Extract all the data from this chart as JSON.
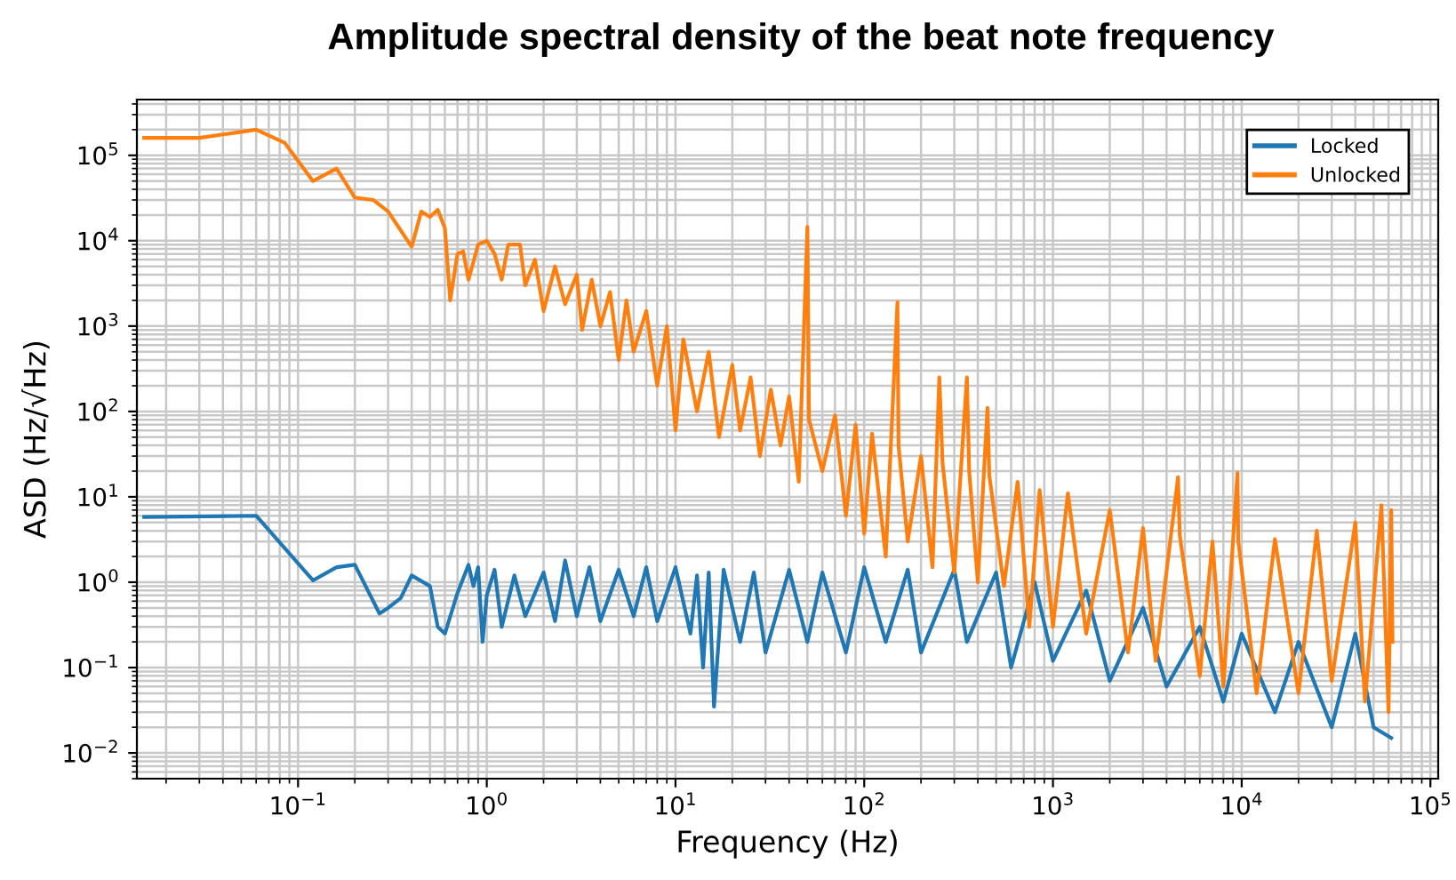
{
  "chart_data": {
    "type": "line",
    "title": "Amplitude spectral density of the beat note frequency",
    "xlabel": "Frequency (Hz)",
    "ylabel": "ASD (Hz/√Hz)",
    "log": "xy",
    "grid": true,
    "legend": "top right",
    "xlim": [
      0.014,
      110000
    ],
    "ylim": [
      0.005,
      450000
    ],
    "xticks": [
      {
        "value": 0.1,
        "label": "10$^{−1}$"
      },
      {
        "value": 1,
        "label": "10$^{0}$"
      },
      {
        "value": 10,
        "label": "10$^{1}$"
      },
      {
        "value": 100,
        "label": "10$^{2}$"
      },
      {
        "value": 1000,
        "label": "10$^{3}$"
      },
      {
        "value": 10000,
        "label": "10$^{4}$"
      },
      {
        "value": 100000,
        "label": "10$^{5}$"
      }
    ],
    "yticks": [
      {
        "value": 0.01,
        "label": "10$^{−2}$"
      },
      {
        "value": 0.1,
        "label": "10$^{−1}$"
      },
      {
        "value": 1,
        "label": "10$^{0}$"
      },
      {
        "value": 10,
        "label": "10$^{1}$"
      },
      {
        "value": 100,
        "label": "10$^{2}$"
      },
      {
        "value": 1000,
        "label": "10$^{3}$"
      },
      {
        "value": 10000,
        "label": "10$^{4}$"
      },
      {
        "value": 100000,
        "label": "10$^{5}$"
      }
    ],
    "series": [
      {
        "name": "Locked",
        "color": "#1f77b4",
        "x": [
          0.0153,
          0.06,
          0.12,
          0.16,
          0.2,
          0.27,
          0.3,
          0.35,
          0.4,
          0.5,
          0.55,
          0.6,
          0.7,
          0.8,
          0.85,
          0.9,
          0.95,
          1.0,
          1.1,
          1.2,
          1.4,
          1.6,
          2.0,
          2.3,
          2.6,
          3.0,
          3.5,
          4.0,
          5,
          6,
          7,
          8,
          10,
          12,
          13,
          14,
          15,
          16,
          18,
          22,
          26,
          30,
          40,
          50,
          60,
          80,
          100,
          130,
          170,
          200,
          300,
          350,
          500,
          600,
          800,
          1000,
          1500,
          2000,
          3000,
          4000,
          6000,
          8000,
          10000,
          15000,
          20000,
          30000,
          40000,
          50000,
          62000
        ],
        "values": [
          5.8,
          6,
          1.05,
          1.5,
          1.6,
          0.43,
          0.5,
          0.65,
          1.2,
          0.9,
          0.3,
          0.25,
          0.75,
          1.6,
          0.9,
          1.5,
          0.2,
          0.7,
          1.4,
          0.3,
          1.2,
          0.4,
          1.3,
          0.35,
          1.8,
          0.4,
          1.5,
          0.35,
          1.4,
          0.4,
          1.5,
          0.35,
          1.5,
          0.25,
          1.2,
          0.1,
          1.3,
          0.035,
          1.4,
          0.2,
          1.3,
          0.15,
          1.4,
          0.2,
          1.3,
          0.15,
          1.5,
          0.2,
          1.4,
          0.15,
          1.4,
          0.2,
          1.3,
          0.1,
          1.0,
          0.12,
          0.8,
          0.07,
          0.5,
          0.06,
          0.3,
          0.04,
          0.25,
          0.03,
          0.2,
          0.02,
          0.25,
          0.02,
          0.015
        ]
      },
      {
        "name": "Unlocked",
        "color": "#ff7f0e",
        "x": [
          0.0153,
          0.03,
          0.06,
          0.085,
          0.12,
          0.16,
          0.2,
          0.25,
          0.3,
          0.4,
          0.45,
          0.5,
          0.55,
          0.6,
          0.64,
          0.7,
          0.75,
          0.8,
          0.9,
          1.0,
          1.1,
          1.2,
          1.3,
          1.5,
          1.6,
          1.8,
          2.0,
          2.3,
          2.6,
          3.0,
          3.2,
          3.6,
          4.0,
          4.5,
          5.0,
          5.5,
          6.0,
          7.0,
          8.0,
          9.0,
          10,
          11,
          13,
          15,
          17,
          20,
          22,
          25,
          28,
          32,
          36,
          40,
          45,
          50,
          51,
          60,
          70,
          80,
          90,
          100,
          110,
          130,
          150,
          152,
          170,
          200,
          230,
          250,
          260,
          300,
          350,
          360,
          400,
          450,
          460,
          550,
          650,
          750,
          850,
          1000,
          1200,
          1500,
          2000,
          2500,
          3000,
          3500,
          4600,
          4700,
          6000,
          7000,
          8000,
          9500,
          9600,
          12000,
          15000,
          20000,
          25000,
          30000,
          40000,
          45000,
          55000,
          60000,
          62000,
          63000
        ],
        "values": [
          160000,
          160000,
          200000,
          140000,
          50000,
          70000,
          32000,
          30000,
          22000,
          8500,
          22000,
          19000,
          23000,
          14000,
          2000,
          7000,
          7500,
          3500,
          9000,
          10000,
          7000,
          3500,
          9000,
          9000,
          3000,
          6000,
          1500,
          5000,
          1800,
          4000,
          900,
          3500,
          1000,
          2500,
          400,
          2000,
          500,
          1500,
          200,
          1000,
          60,
          700,
          100,
          500,
          50,
          350,
          60,
          250,
          30,
          180,
          40,
          150,
          15,
          14500,
          80,
          20,
          90,
          6,
          70,
          3.7,
          55,
          2,
          1900,
          40,
          3,
          30,
          1.5,
          250,
          25,
          1.3,
          250,
          20,
          1,
          110,
          18,
          0.9,
          15,
          0.3,
          12,
          0.3,
          11,
          0.25,
          7,
          0.15,
          4.3,
          0.12,
          17,
          3.5,
          0.08,
          3,
          0.06,
          19,
          3,
          0.05,
          3.2,
          0.05,
          4,
          0.07,
          5,
          0.04,
          8,
          0.03,
          7,
          0.2
        ]
      }
    ]
  }
}
